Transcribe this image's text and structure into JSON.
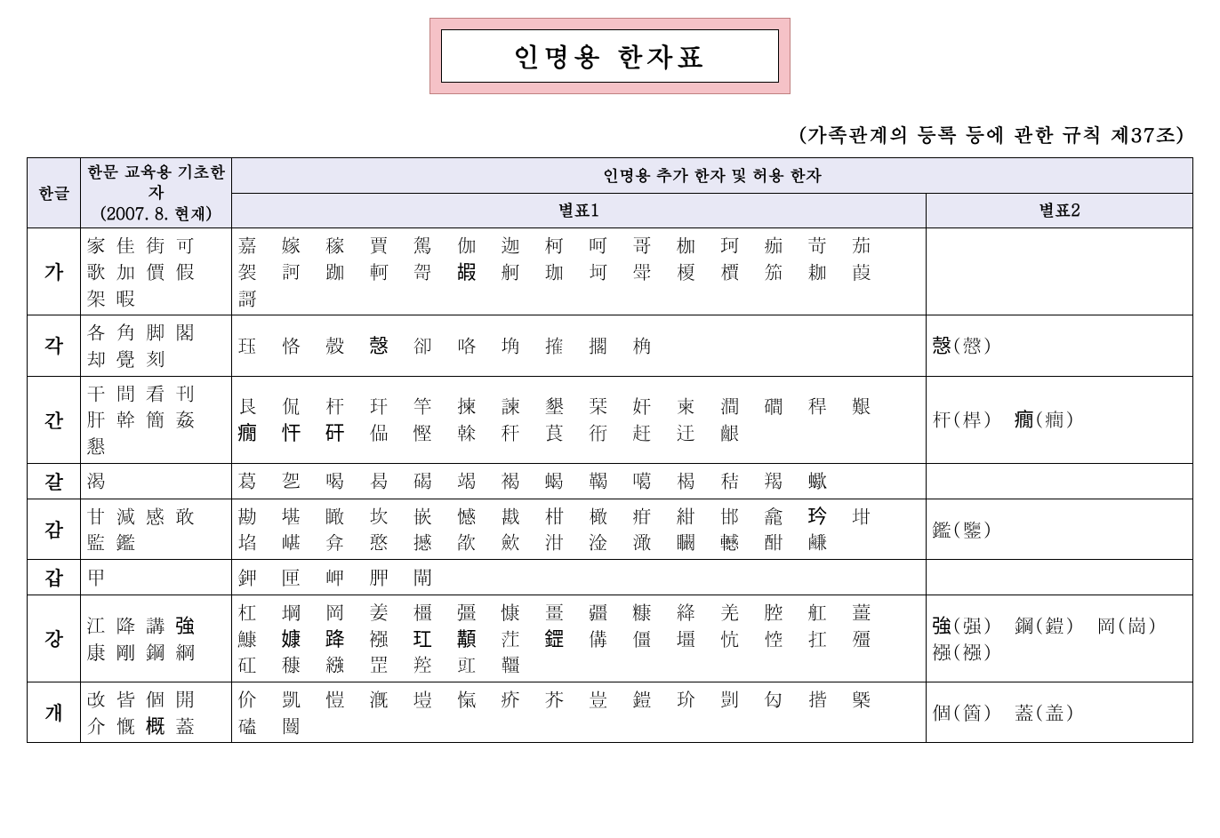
{
  "title": "인명용 한자표",
  "subtitle": "(가족관계의 등록 등에 관한 규칙 제37조)",
  "headers": {
    "col1": "한글",
    "col2_line1": "한문 교육용 기초한자",
    "col2_line2": "(2007. 8. 현재)",
    "group": "인명용 추가 한자 및 허용 한자",
    "col3": "별표1",
    "col4": "별표2"
  },
  "styling": {
    "page_bg": "#ffffff",
    "title_outer_bg": "#f5c2c7",
    "title_inner_bg": "#ffffff",
    "header_bg": "#e8e8f5",
    "border_color": "#000000",
    "title_fontsize": 30,
    "subtitle_fontsize": 22,
    "cell_fontsize": 22,
    "header_fontsize": 18
  },
  "rows": [
    {
      "hangul": "가",
      "basic": "家 佳 街 可 歌 加 價 假 架 暇",
      "extra": "嘉 嫁 稼 賈 駕 伽 迦 柯 呵 哥 枷 珂 痂 苛 茄 袈 訶 跏 軻 哿 嘏 舸 珈 坷 斝 榎 檟 笳 耞 葭 謌",
      "variants": ""
    },
    {
      "hangul": "각",
      "basic": "各 角 脚 閣 却 覺 刻",
      "extra": "珏 恪 殼 愨 卻 咯 埆 搉 擱 桷",
      "variants": "愨(慤)"
    },
    {
      "hangul": "간",
      "basic": "干 間 看 刊 肝 幹 簡 姦 懇",
      "extra": "艮 侃 杆 玕 竿 揀 諫 墾 栞 奸 柬 澗 磵 稈 艱 癇 忓 矸 偘 慳 榦 秆 茛 衎 赶 迀 齦",
      "variants": "杆(桿)　癇(癎)"
    },
    {
      "hangul": "갈",
      "basic": "渴",
      "extra": "葛 乫 喝 曷 碣 竭 褐 蝎 鞨 噶 楬 秸 羯 蠍",
      "variants": ""
    },
    {
      "hangul": "감",
      "basic": "甘 減 感 敢 監 鑑",
      "extra": "勘 堪 瞰 坎 嵌 憾 戡 柑 橄 疳 紺 邯 龕 玪 坩 埳 嵁 弇 憨 撼 欿 歛 泔 淦 澉 矙 轗 酣 鹻",
      "variants": "鑑(鑒)"
    },
    {
      "hangul": "갑",
      "basic": "甲",
      "extra": "鉀 匣 岬 胛 閘",
      "variants": ""
    },
    {
      "hangul": "강",
      "basic": "江 降 講 強 康 剛 鋼 綱",
      "extra": "杠 堈 岡 姜 橿 彊 慷 畺 疆 糠 絳 羌 腔 舡 薑 鱇 嫝 跭 襁 玒 顜 茳 鎠 傋 僵 壃 忼 悾 扛 殭 矼 穅 繈 罡 羫 豇 韁",
      "variants": "強(强)　鋼(鎧)　岡(崗)　襁(襁)"
    },
    {
      "hangul": "개",
      "basic": "改 皆 個 開 介 慨 概 蓋",
      "extra": "价 凱 愷 漑 塏 愾 疥 芥 豈 鎧 玠 剴 匃 揩 槩 磕 闓",
      "variants": "個(箇)　蓋(盖)"
    }
  ]
}
